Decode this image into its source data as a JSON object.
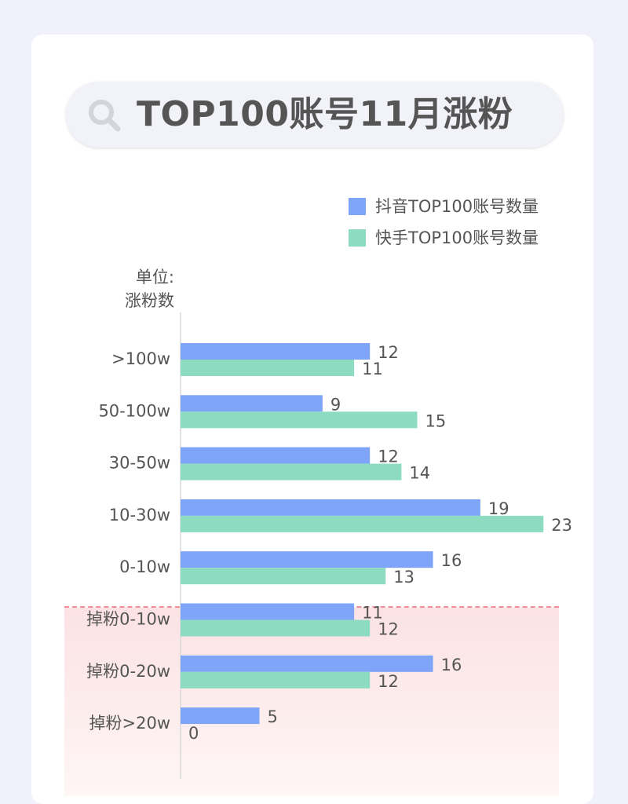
{
  "title": "TOP100账号11月涨粉",
  "icons": {
    "search": "search-icon"
  },
  "colors": {
    "douyin": "#7ea5f7",
    "kuaishou": "#8ddcc1",
    "axis": "#d8d8d8",
    "label": "#555555",
    "loss_zone": "#fde6e8",
    "loss_divider": "#f08d96"
  },
  "unit_label": [
    "单位:",
    "涨粉数"
  ],
  "chart_data": {
    "type": "bar",
    "orientation": "horizontal",
    "title": "TOP100账号11月涨粉",
    "ylabel": "单位：涨粉数",
    "categories": [
      ">100w",
      "50-100w",
      "30-50w",
      "10-30w",
      "0-10w",
      "掉粉0-10w",
      "掉粉0-20w",
      "掉粉>20w"
    ],
    "series": [
      {
        "name": "抖音TOP100账号数量",
        "values": [
          12,
          9,
          12,
          19,
          16,
          11,
          16,
          5
        ]
      },
      {
        "name": "快手TOP100账号数量",
        "values": [
          11,
          15,
          14,
          23,
          13,
          12,
          12,
          0
        ]
      }
    ],
    "xlim": [
      0,
      23
    ],
    "legend_position": "top-right",
    "grid": false,
    "highlighted_region": [
      "掉粉0-10w",
      "掉粉0-20w",
      "掉粉>20w"
    ]
  }
}
